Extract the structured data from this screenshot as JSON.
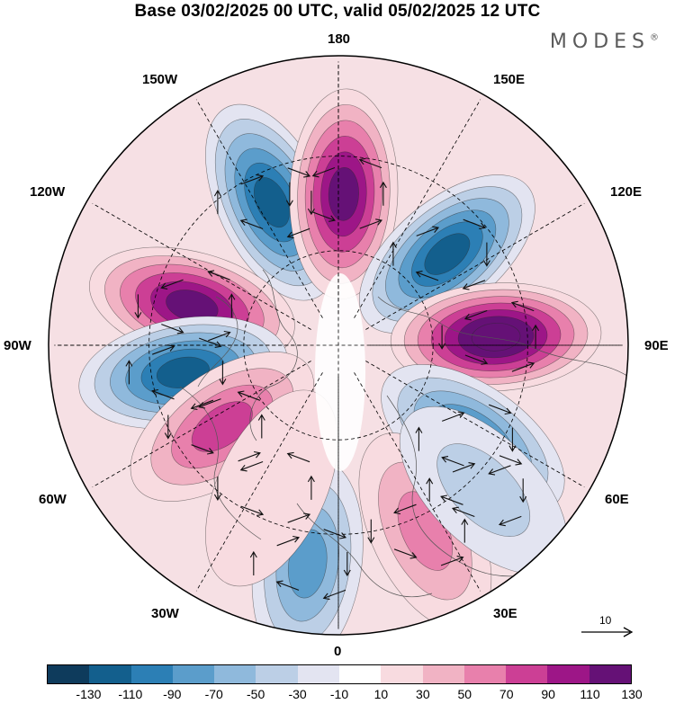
{
  "title": "Base 03/02/2025 00 UTC, valid 05/02/2025 12 UTC",
  "brand": "MODES",
  "brand_mark": "®",
  "longitude_labels": {
    "top": "180",
    "top_left": "150W",
    "top_right": "150E",
    "upper_left": "120W",
    "upper_right": "120E",
    "left": "90W",
    "right": "90E",
    "lower_left": "60W",
    "lower_right": "60E",
    "bottom_left": "30W",
    "bottom_right": "30E",
    "bottom": "0"
  },
  "vector_scale": {
    "label": "10"
  },
  "colorbar": {
    "tick_labels": [
      "-130",
      "-110",
      "-90",
      "-70",
      "-50",
      "-30",
      "-10",
      "10",
      "30",
      "50",
      "70",
      "90",
      "110",
      "130"
    ],
    "colors": [
      "#0e3b5c",
      "#135f8d",
      "#2c7fb5",
      "#5b9dcb",
      "#8fb9dc",
      "#bccfe6",
      "#e3e4f1",
      "#ffffff",
      "#f8dbe0",
      "#f1b3c4",
      "#e880ac",
      "#cc3f95",
      "#9d1687",
      "#651176"
    ]
  },
  "anomalies": [
    {
      "sign": "neg",
      "lon": -155,
      "lat": 40,
      "amp": 130
    },
    {
      "sign": "pos",
      "lon": 178,
      "lat": 42,
      "amp": 130
    },
    {
      "sign": "neg",
      "lon": 130,
      "lat": 45,
      "amp": 135
    },
    {
      "sign": "pos",
      "lon": 93,
      "lat": 40,
      "amp": 140
    },
    {
      "sign": "neg",
      "lon": 55,
      "lat": 38,
      "amp": 110
    },
    {
      "sign": "pos",
      "lon": -105,
      "lat": 42,
      "amp": 125
    },
    {
      "sign": "neg",
      "lon": -80,
      "lat": 40,
      "amp": 125
    },
    {
      "sign": "pos",
      "lon": -55,
      "lat": 45,
      "amp": 85
    },
    {
      "sign": "neg",
      "lon": -8,
      "lat": 20,
      "amp": 80
    },
    {
      "sign": "pos",
      "lon": 25,
      "lat": 25,
      "amp": 65
    },
    {
      "sign": "neg",
      "lon": 45,
      "lat": 25,
      "amp": 55
    },
    {
      "sign": "pos",
      "lon": -25,
      "lat": 40,
      "amp": 35
    }
  ]
}
